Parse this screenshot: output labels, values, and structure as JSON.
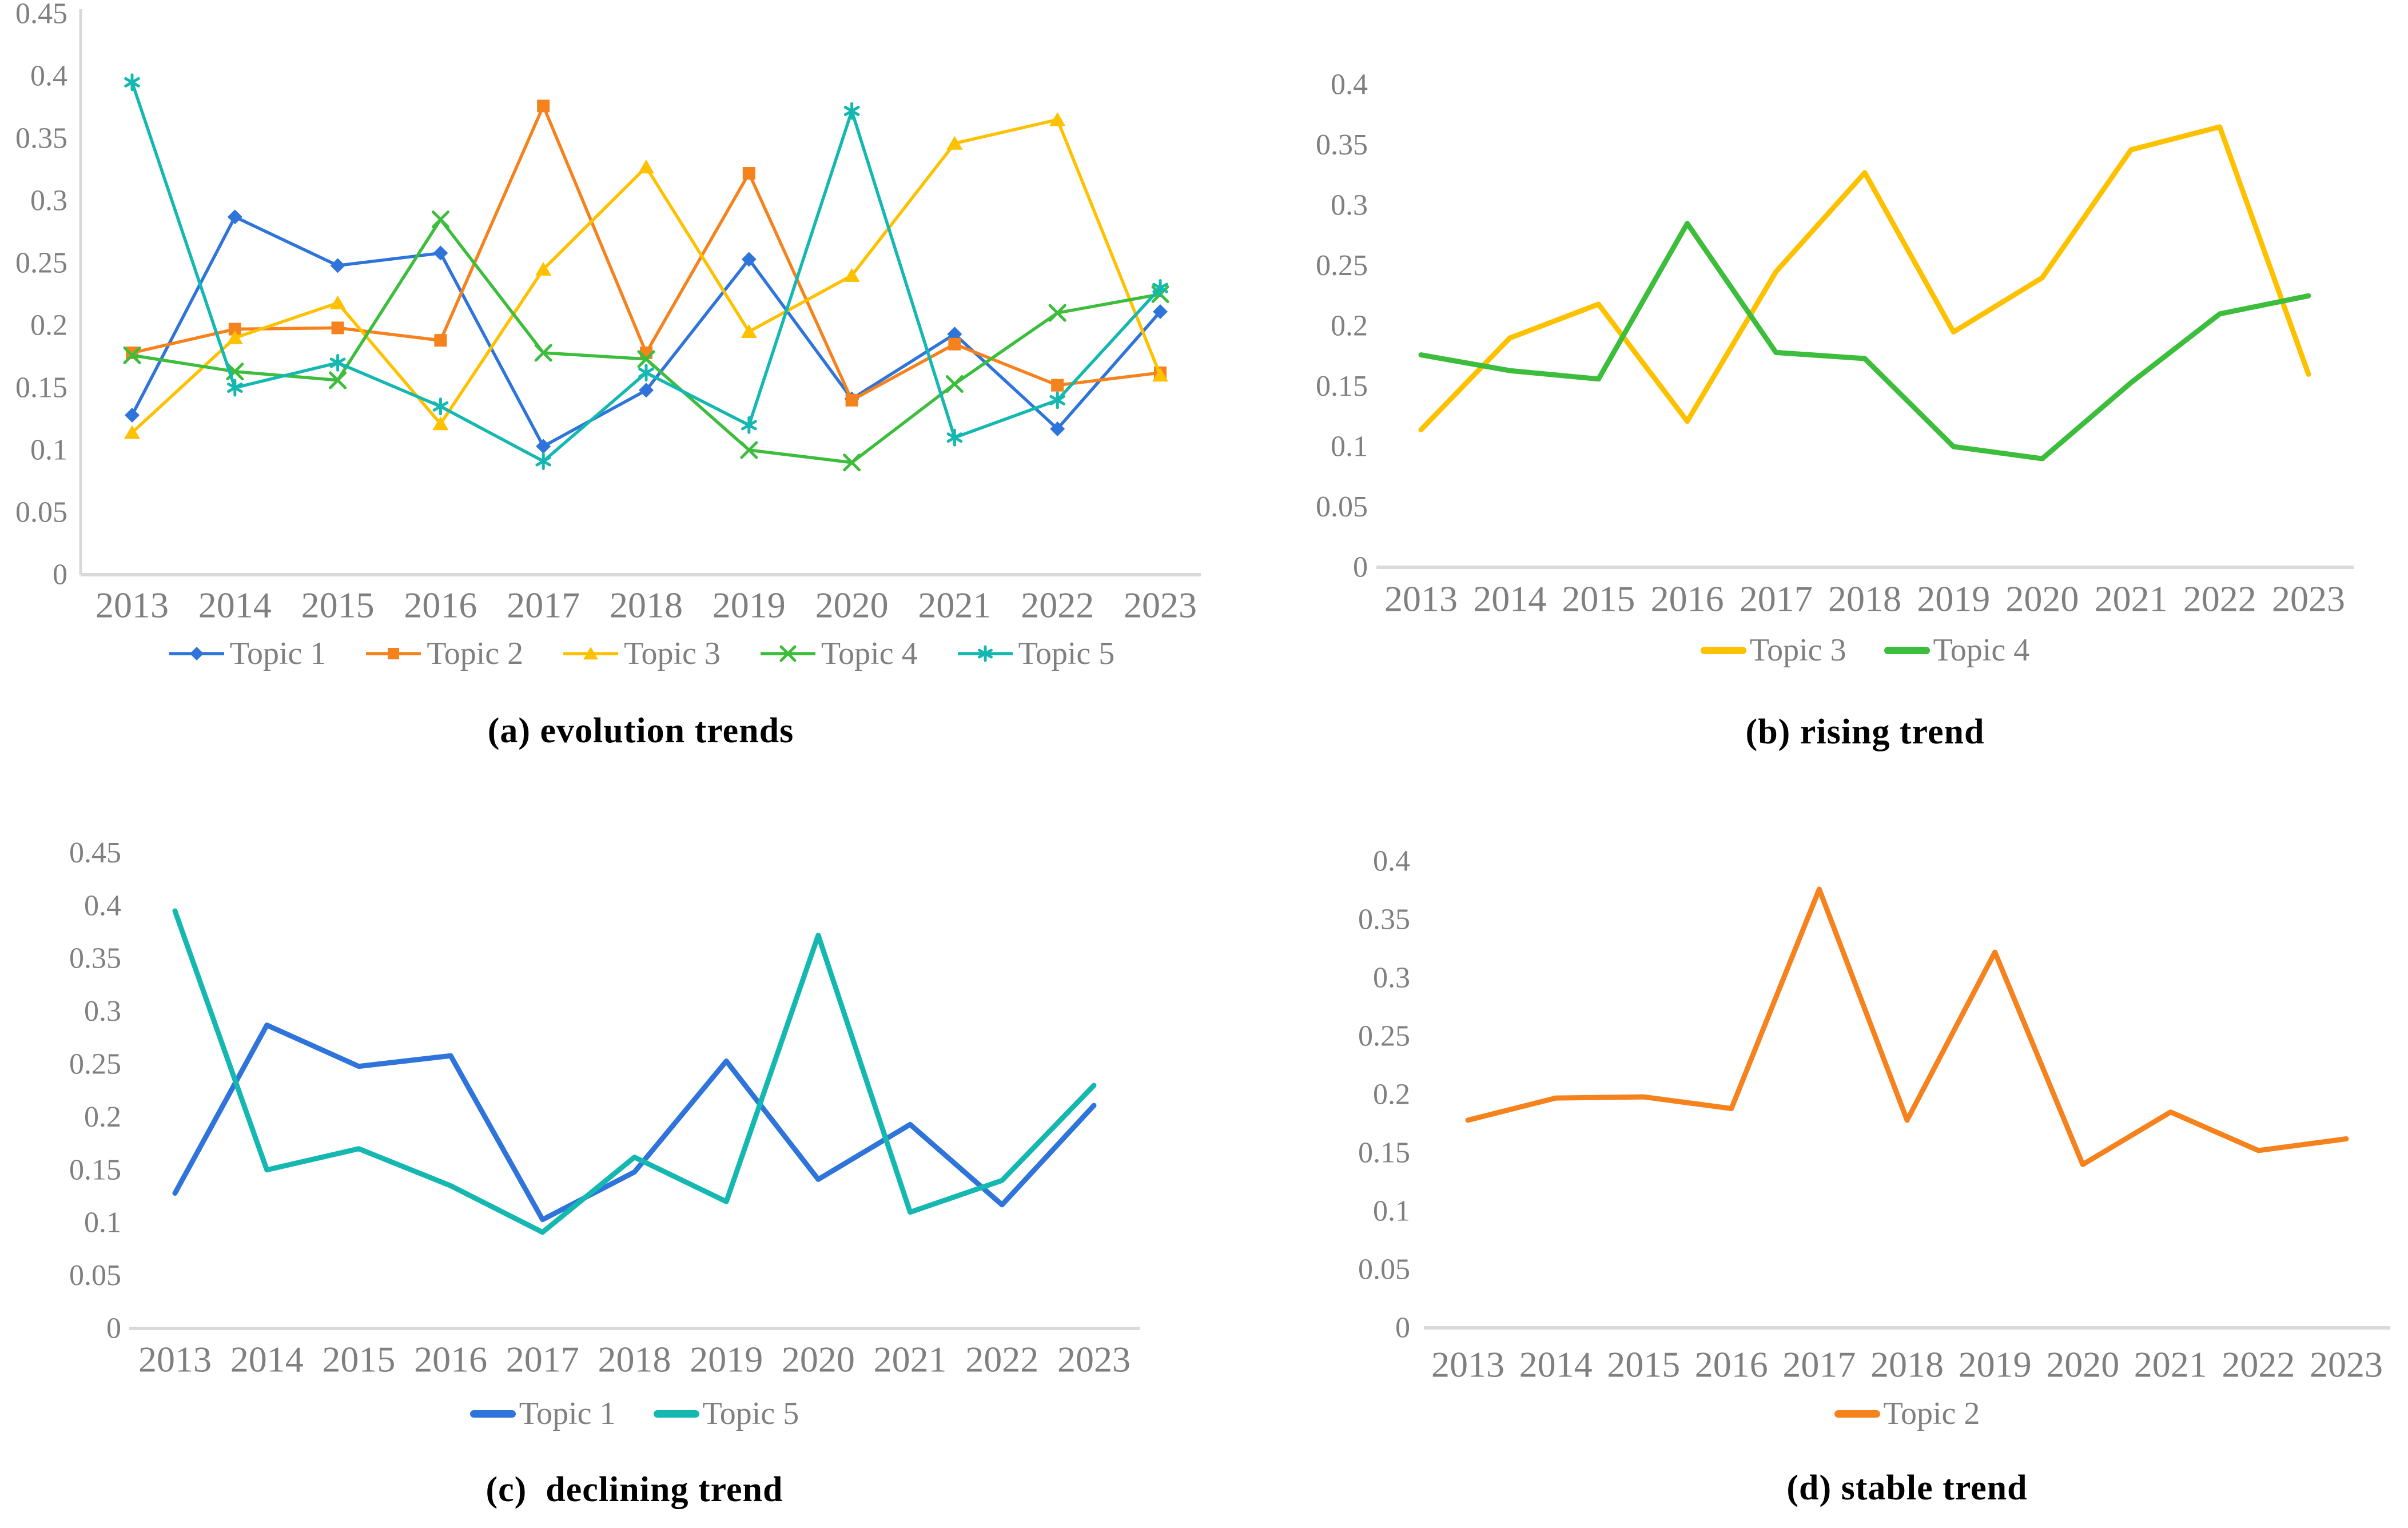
{
  "page": {
    "background": "#FFFFFF"
  },
  "years": [
    "2013",
    "2014",
    "2015",
    "2016",
    "2017",
    "2018",
    "2019",
    "2020",
    "2021",
    "2022",
    "2023"
  ],
  "colors": {
    "topic1": "#2E74DA",
    "topic2": "#F6821E",
    "topic3": "#FEC100",
    "topic4": "#3CBE3C",
    "topic5": "#14B8B1",
    "axis_line": "#D9D9D9",
    "tick_text": "#7F7F7F",
    "caption_text": "#000000"
  },
  "chart_data": [
    {
      "type": "line",
      "title": "(a) evolution trends",
      "x": [
        "2013",
        "2014",
        "2015",
        "2016",
        "2017",
        "2018",
        "2019",
        "2020",
        "2021",
        "2022",
        "2023"
      ],
      "ylim": [
        0,
        0.45
      ],
      "ytick_step": 0.05,
      "grid": false,
      "legend_position": "bottom",
      "markers": true,
      "series": [
        {
          "name": "Topic 1",
          "color": "#2E74DA",
          "marker": "diamond",
          "values": [
            0.128,
            0.287,
            0.248,
            0.258,
            0.103,
            0.148,
            0.253,
            0.141,
            0.193,
            0.117,
            0.211
          ]
        },
        {
          "name": "Topic 2",
          "color": "#F6821E",
          "marker": "square",
          "values": [
            0.178,
            0.197,
            0.198,
            0.188,
            0.376,
            0.178,
            0.322,
            0.14,
            0.185,
            0.152,
            0.162
          ]
        },
        {
          "name": "Topic 3",
          "color": "#FEC100",
          "marker": "triangle",
          "values": [
            0.114,
            0.19,
            0.218,
            0.121,
            0.245,
            0.327,
            0.195,
            0.24,
            0.346,
            0.365,
            0.16
          ]
        },
        {
          "name": "Topic 4",
          "color": "#3CBE3C",
          "marker": "x",
          "values": [
            0.176,
            0.163,
            0.156,
            0.285,
            0.178,
            0.173,
            0.1,
            0.09,
            0.153,
            0.21,
            0.225
          ]
        },
        {
          "name": "Topic 5",
          "color": "#14B8B1",
          "marker": "asterisk",
          "values": [
            0.395,
            0.15,
            0.17,
            0.135,
            0.091,
            0.162,
            0.12,
            0.372,
            0.11,
            0.14,
            0.23
          ]
        }
      ]
    },
    {
      "type": "line",
      "title": "(b) rising trend",
      "x": [
        "2013",
        "2014",
        "2015",
        "2016",
        "2017",
        "2018",
        "2019",
        "2020",
        "2021",
        "2022",
        "2023"
      ],
      "ylim": [
        0,
        0.4
      ],
      "ytick_step": 0.05,
      "grid": false,
      "legend_position": "bottom",
      "markers": false,
      "series": [
        {
          "name": "Topic 3",
          "color": "#FEC100",
          "marker": "none",
          "values": [
            0.114,
            0.19,
            0.218,
            0.121,
            0.245,
            0.327,
            0.195,
            0.24,
            0.346,
            0.365,
            0.16
          ]
        },
        {
          "name": "Topic 4",
          "color": "#3CBE3C",
          "marker": "none",
          "values": [
            0.176,
            0.163,
            0.156,
            0.285,
            0.178,
            0.173,
            0.1,
            0.09,
            0.153,
            0.21,
            0.225
          ]
        }
      ]
    },
    {
      "type": "line",
      "title": "(c)  declining trend",
      "x": [
        "2013",
        "2014",
        "2015",
        "2016",
        "2017",
        "2018",
        "2019",
        "2020",
        "2021",
        "2022",
        "2023"
      ],
      "ylim": [
        0,
        0.45
      ],
      "ytick_step": 0.05,
      "grid": false,
      "legend_position": "bottom",
      "markers": false,
      "series": [
        {
          "name": "Topic 1",
          "color": "#2E74DA",
          "marker": "none",
          "values": [
            0.128,
            0.287,
            0.248,
            0.258,
            0.103,
            0.148,
            0.253,
            0.141,
            0.193,
            0.117,
            0.211
          ]
        },
        {
          "name": "Topic 5",
          "color": "#14B8B1",
          "marker": "none",
          "values": [
            0.395,
            0.15,
            0.17,
            0.135,
            0.091,
            0.162,
            0.12,
            0.372,
            0.11,
            0.14,
            0.23
          ]
        }
      ]
    },
    {
      "type": "line",
      "title": "(d) stable trend",
      "x": [
        "2013",
        "2014",
        "2015",
        "2016",
        "2017",
        "2018",
        "2019",
        "2020",
        "2021",
        "2022",
        "2023"
      ],
      "ylim": [
        0,
        0.4
      ],
      "ytick_step": 0.05,
      "grid": false,
      "legend_position": "bottom",
      "markers": false,
      "series": [
        {
          "name": "Topic 2",
          "color": "#F6821E",
          "marker": "none",
          "values": [
            0.178,
            0.197,
            0.198,
            0.188,
            0.376,
            0.178,
            0.322,
            0.14,
            0.185,
            0.152,
            0.162
          ]
        }
      ]
    }
  ]
}
